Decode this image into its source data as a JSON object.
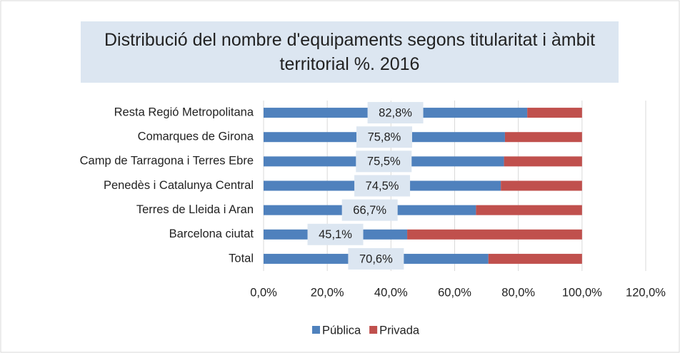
{
  "chart_data": {
    "type": "stacked_barh",
    "title": "Distribució del nombre d'equipaments segons titularitat i àmbit territorial %. 2016",
    "categories": [
      "Resta Regió Metropolitana",
      "Comarques de Girona",
      "Camp de Tarragona i Terres Ebre",
      "Penedès i Catalunya Central",
      "Terres de Lleida i Aran",
      "Barcelona ciutat",
      "Total"
    ],
    "series": [
      {
        "name": "Pública",
        "color": "#4f81bd",
        "values": [
          82.8,
          75.8,
          75.5,
          74.5,
          66.7,
          45.1,
          70.6
        ],
        "value_labels": [
          "82,8%",
          "75,8%",
          "75,5%",
          "74,5%",
          "66,7%",
          "45,1%",
          "70,6%"
        ]
      },
      {
        "name": "Privada",
        "color": "#c0504d",
        "values": [
          17.2,
          24.2,
          24.5,
          25.5,
          33.3,
          54.9,
          29.4
        ]
      }
    ],
    "xlim": [
      0,
      120
    ],
    "xticks": [
      {
        "value": 0,
        "label": "0,0%"
      },
      {
        "value": 20,
        "label": "20,0%"
      },
      {
        "value": 40,
        "label": "40,0%"
      },
      {
        "value": 60,
        "label": "60,0%"
      },
      {
        "value": 80,
        "label": "80,0%"
      },
      {
        "value": 100,
        "label": "100,0%"
      },
      {
        "value": 120,
        "label": "120,0%"
      }
    ],
    "grid": true,
    "legend": "bottom"
  }
}
